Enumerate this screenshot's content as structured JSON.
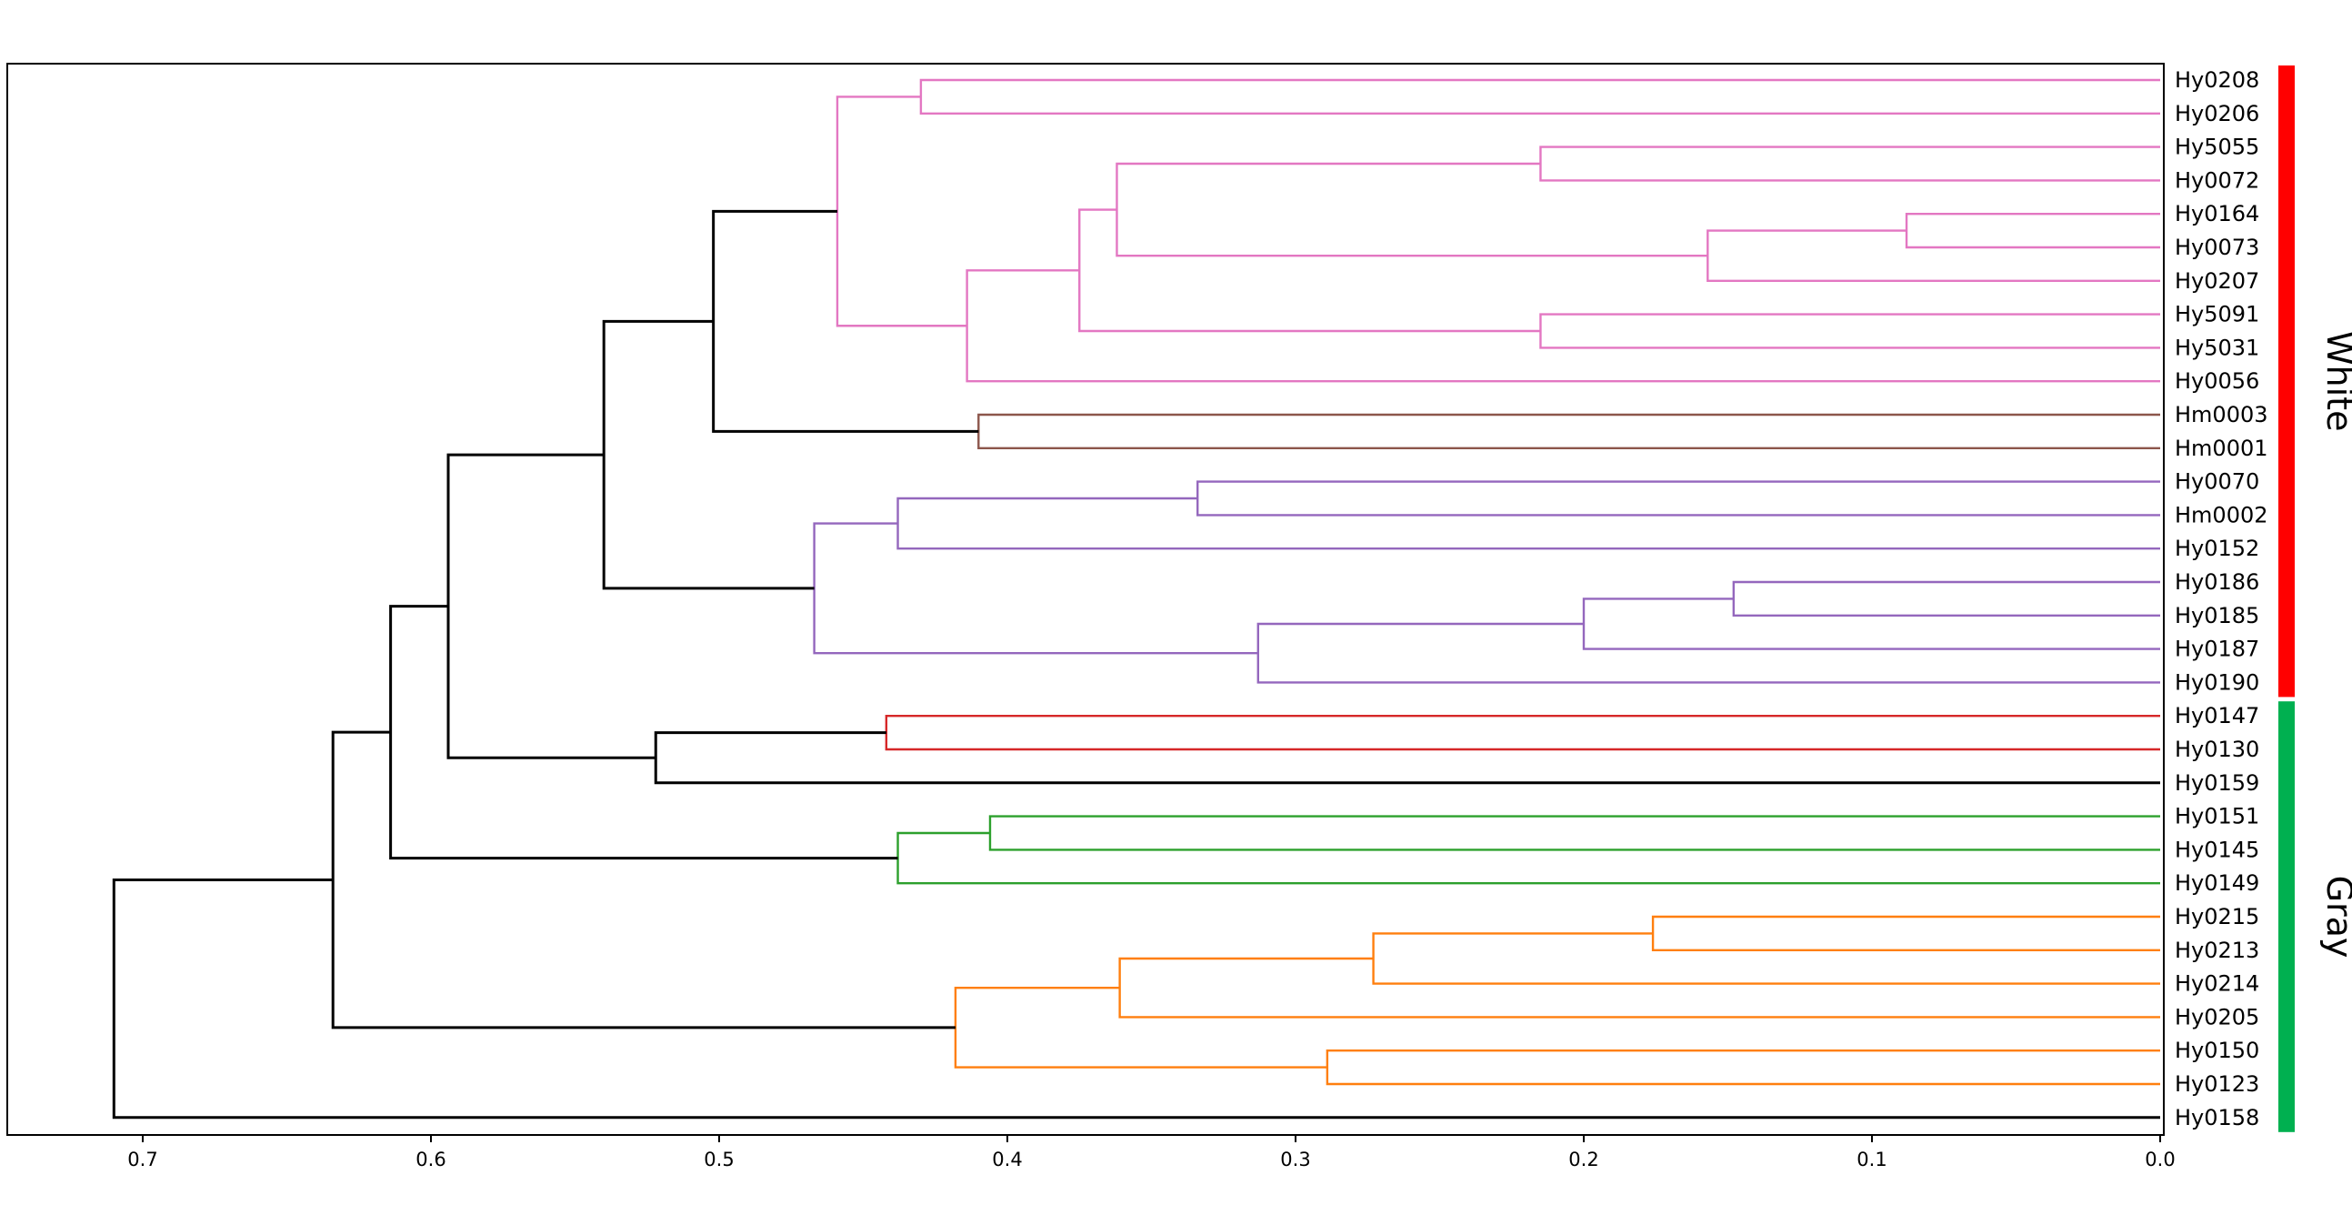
{
  "chart_data": {
    "type": "dendrogram",
    "orientation": "left",
    "xlim": [
      0.735,
      0.0
    ],
    "x_ticks": [
      0.7,
      0.6,
      0.5,
      0.4,
      0.3,
      0.2,
      0.1,
      0.0
    ],
    "x_tick_labels": [
      "0.7",
      "0.6",
      "0.5",
      "0.4",
      "0.3",
      "0.2",
      "0.1",
      "0.0"
    ],
    "leaves": [
      "Hy0208",
      "Hy0206",
      "Hy5055",
      "Hy0072",
      "Hy0164",
      "Hy0073",
      "Hy0207",
      "Hy5091",
      "Hy5031",
      "Hy0056",
      "Hm0003",
      "Hm0001",
      "Hy0070",
      "Hm0002",
      "Hy0152",
      "Hy0186",
      "Hy0185",
      "Hy0187",
      "Hy0190",
      "Hy0147",
      "Hy0130",
      "Hy0159",
      "Hy0151",
      "Hy0145",
      "Hy0149",
      "Hy0215",
      "Hy0213",
      "Hy0214",
      "Hy0205",
      "Hy0150",
      "Hy0123",
      "Hy0158"
    ],
    "merges": [
      {
        "a": "L0",
        "b": "L1",
        "height": 0.43,
        "color": "#e377c2"
      },
      {
        "a": "L2",
        "b": "L3",
        "height": 0.215,
        "color": "#e377c2"
      },
      {
        "a": "L4",
        "b": "L5",
        "height": 0.088,
        "color": "#e377c2"
      },
      {
        "a": "N2",
        "b": "L6",
        "height": 0.157,
        "color": "#e377c2"
      },
      {
        "a": "N1",
        "b": "N3",
        "height": 0.362,
        "color": "#e377c2"
      },
      {
        "a": "L7",
        "b": "L8",
        "height": 0.215,
        "color": "#e377c2"
      },
      {
        "a": "N4",
        "b": "N5",
        "height": 0.375,
        "color": "#e377c2"
      },
      {
        "a": "N6",
        "b": "L9",
        "height": 0.414,
        "color": "#e377c2"
      },
      {
        "a": "N0",
        "b": "N7",
        "height": 0.459,
        "color": "#e377c2"
      },
      {
        "a": "L10",
        "b": "L11",
        "height": 0.41,
        "color": "#8c564b"
      },
      {
        "a": "N8",
        "b": "N9",
        "height": 0.502,
        "color": "#000000"
      },
      {
        "a": "L12",
        "b": "L13",
        "height": 0.334,
        "color": "#9467bd"
      },
      {
        "a": "N11",
        "b": "L14",
        "height": 0.438,
        "color": "#9467bd"
      },
      {
        "a": "L15",
        "b": "L16",
        "height": 0.148,
        "color": "#9467bd"
      },
      {
        "a": "N13",
        "b": "L17",
        "height": 0.2,
        "color": "#9467bd"
      },
      {
        "a": "N14",
        "b": "L18",
        "height": 0.313,
        "color": "#9467bd"
      },
      {
        "a": "N12",
        "b": "N15",
        "height": 0.467,
        "color": "#9467bd"
      },
      {
        "a": "N10",
        "b": "N16",
        "height": 0.54,
        "color": "#000000"
      },
      {
        "a": "L19",
        "b": "L20",
        "height": 0.442,
        "color": "#d62728"
      },
      {
        "a": "N18",
        "b": "L21",
        "height": 0.522,
        "color": "#000000"
      },
      {
        "a": "N17",
        "b": "N19",
        "height": 0.594,
        "color": "#000000"
      },
      {
        "a": "L22",
        "b": "L23",
        "height": 0.406,
        "color": "#2ca02c"
      },
      {
        "a": "N21",
        "b": "L24",
        "height": 0.438,
        "color": "#2ca02c"
      },
      {
        "a": "N20",
        "b": "N22",
        "height": 0.614,
        "color": "#000000"
      },
      {
        "a": "L25",
        "b": "L26",
        "height": 0.176,
        "color": "#ff7f0e"
      },
      {
        "a": "N24",
        "b": "L27",
        "height": 0.273,
        "color": "#ff7f0e"
      },
      {
        "a": "N25",
        "b": "L28",
        "height": 0.361,
        "color": "#ff7f0e"
      },
      {
        "a": "L29",
        "b": "L30",
        "height": 0.289,
        "color": "#ff7f0e"
      },
      {
        "a": "N26",
        "b": "N27",
        "height": 0.418,
        "color": "#ff7f0e"
      },
      {
        "a": "N23",
        "b": "N28",
        "height": 0.634,
        "color": "#000000"
      },
      {
        "a": "N29",
        "b": "L31",
        "height": 0.71,
        "color": "#000000"
      }
    ],
    "groups": [
      {
        "label": "White",
        "first_leaf": 0,
        "last_leaf": 18,
        "color": "#ff0000"
      },
      {
        "label": "Gray",
        "first_leaf": 19,
        "last_leaf": 31,
        "color": "#00b050"
      }
    ]
  }
}
